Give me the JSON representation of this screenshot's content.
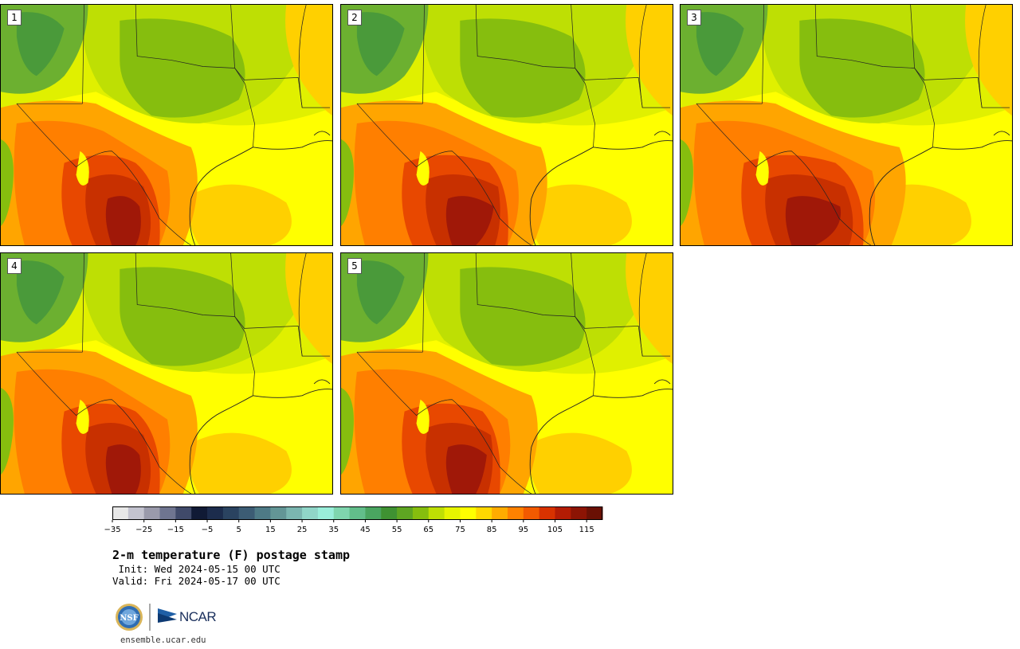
{
  "panels": [
    {
      "label": "1",
      "hot_extent": 1.0,
      "east_reach": 1.0
    },
    {
      "label": "2",
      "hot_extent": 1.1,
      "east_reach": 1.05
    },
    {
      "label": "3",
      "hot_extent": 1.15,
      "east_reach": 1.15
    },
    {
      "label": "4",
      "hot_extent": 1.0,
      "east_reach": 1.0
    },
    {
      "label": "5",
      "hot_extent": 1.05,
      "east_reach": 1.0
    }
  ],
  "colorbar": {
    "min": -35,
    "max": 120,
    "step": 5,
    "tick_labels": [
      "−35",
      "−25",
      "−15",
      "−5",
      "5",
      "15",
      "25",
      "35",
      "45",
      "55",
      "65",
      "75",
      "85",
      "95",
      "105",
      "115"
    ],
    "colors": [
      "#e8e8e8",
      "#c3c3cf",
      "#9a9aab",
      "#6f7590",
      "#404a6a",
      "#101a35",
      "#1c2c4c",
      "#2a4360",
      "#3c5c74",
      "#4e7a86",
      "#639696",
      "#7bb6b0",
      "#90d6c8",
      "#9aeeda",
      "#7fd6ae",
      "#62be8a",
      "#4aa560",
      "#3f9232",
      "#5ea622",
      "#86be0e",
      "#bedf04",
      "#e6f400",
      "#ffff00",
      "#ffd700",
      "#ffac00",
      "#ff8200",
      "#f25a00",
      "#d83200",
      "#b41c04",
      "#8c1404",
      "#6a1004"
    ]
  },
  "title": "2-m temperature (F) postage stamp",
  "init_line": " Init: Wed 2024-05-15 00 UTC",
  "valid_line": "Valid: Fri 2024-05-17 00 UTC",
  "logos": {
    "nsf": "NSF",
    "ncar": "NCAR",
    "nsf_icon": "nsf-seal-icon",
    "ncar_icon": "ncar-logo-icon"
  },
  "site": "ensemble.ucar.edu"
}
